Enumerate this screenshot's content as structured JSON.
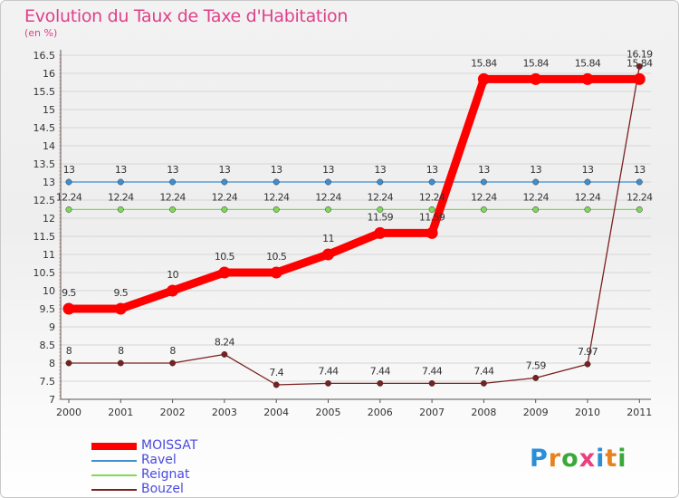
{
  "title": "Evolution du Taux de Taxe d'Habitation",
  "subtitle": "(en %)",
  "logo_text": "Proxiti",
  "logo_colors": [
    "#2a8fd8",
    "#e8821e",
    "#3aa83a",
    "#e84080",
    "#2a8fd8",
    "#e8821e",
    "#3aa83a"
  ],
  "chart_data": {
    "type": "line",
    "x": [
      "2000",
      "2001",
      "2002",
      "2003",
      "2004",
      "2005",
      "2006",
      "2007",
      "2008",
      "2009",
      "2010",
      "2011"
    ],
    "y_ticks": [
      "7",
      "7.5",
      "8",
      "8.5",
      "9",
      "9.5",
      "10",
      "10.5",
      "11",
      "11.5",
      "12",
      "12.5",
      "13",
      "13.5",
      "14",
      "14.5",
      "15",
      "15.5",
      "16",
      "16.5"
    ],
    "ylim": [
      7,
      16.5
    ],
    "grid": "horizontal",
    "legend_position": "bottom-left",
    "series": [
      {
        "name": "MOISSAT",
        "color": "#ff0000",
        "values": [
          9.5,
          9.5,
          10,
          10.5,
          10.5,
          11,
          11.59,
          11.59,
          15.84,
          15.84,
          15.84,
          15.84
        ],
        "labels": [
          "9.5",
          "9.5",
          "10",
          "10.5",
          "10.5",
          "11",
          "11.59",
          "11.59",
          "15.84",
          "15.84",
          "15.84",
          "15.84"
        ]
      },
      {
        "name": "Ravel",
        "color": "#3e8ed0",
        "values": [
          13,
          13,
          13,
          13,
          13,
          13,
          13,
          13,
          13,
          13,
          13,
          13
        ],
        "labels": [
          "13",
          "13",
          "13",
          "13",
          "13",
          "13",
          "13",
          "13",
          "13",
          "13",
          "13",
          "13"
        ]
      },
      {
        "name": "Reignat",
        "color": "#7ed957",
        "values": [
          12.24,
          12.24,
          12.24,
          12.24,
          12.24,
          12.24,
          12.24,
          12.24,
          12.24,
          12.24,
          12.24,
          12.24
        ],
        "labels": [
          "12.24",
          "12.24",
          "12.24",
          "12.24",
          "12.24",
          "12.24",
          "12.24",
          "12.24",
          "12.24",
          "12.24",
          "12.24",
          "12.24"
        ]
      },
      {
        "name": "Bouzel",
        "color": "#7b1f1f",
        "values": [
          8,
          8,
          8,
          8.24,
          7.4,
          7.44,
          7.44,
          7.44,
          7.44,
          7.59,
          7.97,
          16.19
        ],
        "labels": [
          "8",
          "8",
          "8",
          "8.24",
          "7.4",
          "7.44",
          "7.44",
          "7.44",
          "7.44",
          "7.59",
          "7.97",
          "16.19"
        ]
      }
    ]
  }
}
